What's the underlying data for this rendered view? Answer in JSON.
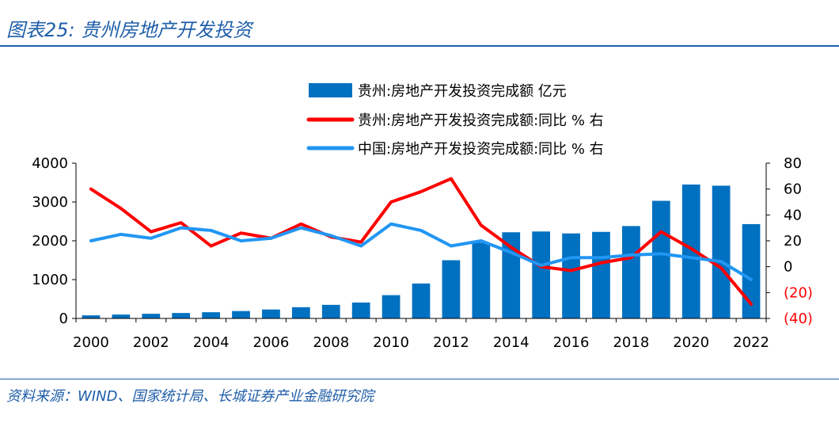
{
  "header": {
    "title": "图表25:  贵州房地产开发投资"
  },
  "footer": {
    "source": "资料来源：WIND、国家统计局、长城证券产业金融研究院"
  },
  "chart_data": {
    "type": "bar+line",
    "title": "贵州房地产开发投资",
    "categories": [
      "2000",
      "2001",
      "2002",
      "2003",
      "2004",
      "2005",
      "2006",
      "2007",
      "2008",
      "2009",
      "2010",
      "2011",
      "2012",
      "2013",
      "2014",
      "2015",
      "2016",
      "2017",
      "2018",
      "2019",
      "2020",
      "2021",
      "2022"
    ],
    "x_tick_labels": [
      "2000",
      "2002",
      "2004",
      "2006",
      "2008",
      "2010",
      "2012",
      "2014",
      "2016",
      "2018",
      "2020",
      "2022"
    ],
    "left_axis": {
      "ylim": [
        0,
        4000
      ],
      "ticks": [
        "0",
        "1000",
        "2000",
        "3000",
        "4000"
      ]
    },
    "right_axis": {
      "ylim": [
        -40,
        80
      ],
      "ticks": [
        "(40)",
        "(20)",
        "0",
        "20",
        "40",
        "60",
        "80"
      ]
    },
    "series": [
      {
        "name": "贵州:房地产开发投资完成额 亿元",
        "type": "bar",
        "axis": "left",
        "color": "#0070c0",
        "values": [
          80,
          100,
          120,
          140,
          160,
          190,
          230,
          290,
          350,
          410,
          600,
          900,
          1500,
          1950,
          2220,
          2240,
          2190,
          2230,
          2380,
          3030,
          3450,
          3420,
          2430
        ]
      },
      {
        "name": "贵州:房地产开发投资完成额:同比 % 右",
        "type": "line",
        "axis": "right",
        "color": "#ff0000",
        "values": [
          60,
          45,
          27,
          34,
          16,
          26,
          22,
          33,
          23,
          19,
          50,
          58,
          68,
          32,
          15,
          0,
          -3,
          3,
          7,
          27,
          14,
          -1,
          -29
        ]
      },
      {
        "name": "中国:房地产开发投资完成额:同比 % 右",
        "type": "line",
        "axis": "right",
        "color": "#2196f3",
        "values": [
          20,
          25,
          22,
          30,
          28,
          20,
          22,
          30,
          24,
          16,
          33,
          28,
          16,
          20,
          11,
          1,
          7,
          7,
          9,
          10,
          7,
          4,
          -10
        ]
      }
    ],
    "negative_label_color": "#ff0000"
  }
}
